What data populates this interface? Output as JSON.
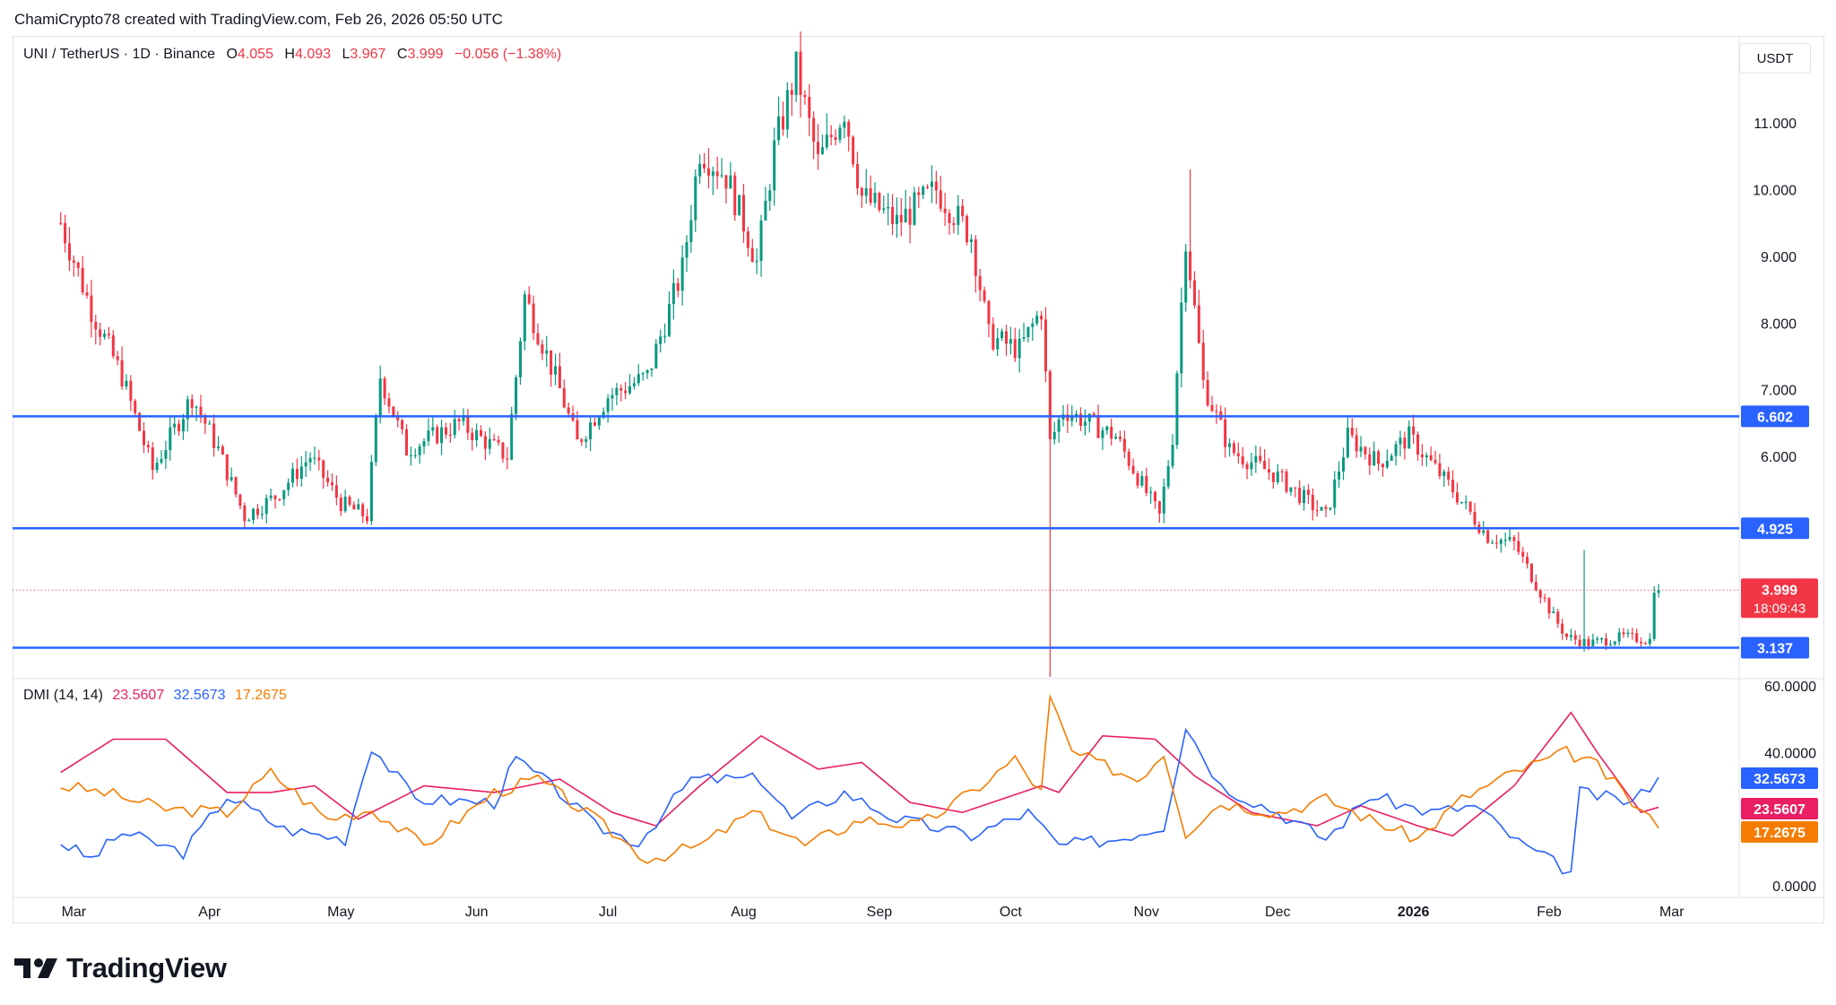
{
  "header": {
    "credit": "ChamiCrypto78 created with TradingView.com, Feb 26, 2026 05:50 UTC"
  },
  "legend": {
    "symbol": "UNI / TetherUS · 1D · Binance",
    "open_label": "O",
    "open": "4.055",
    "high_label": "H",
    "high": "4.093",
    "low_label": "L",
    "low": "3.967",
    "close_label": "C",
    "close": "3.999",
    "change": "−0.056 (−1.38%)"
  },
  "currency_button": "USDT",
  "dmi_legend": {
    "title": "DMI (14, 14)",
    "adx": "23.5607",
    "plus_di": "32.5673",
    "minus_di": "17.2675"
  },
  "brand": "TradingView",
  "colors": {
    "up": "#089981",
    "down": "#f23645",
    "level_line": "#2962ff",
    "adx": "#e91e63",
    "plus_di": "#2962ff",
    "minus_di": "#f57c00"
  },
  "chart_data": [
    {
      "type": "candlestick",
      "title": "",
      "xlabel": "",
      "ylabel": "",
      "x_ticks": [
        "Mar",
        "Apr",
        "May",
        "Jun",
        "Jul",
        "Aug",
        "Sep",
        "Oct",
        "Nov",
        "Dec",
        "2026",
        "Feb",
        "Mar"
      ],
      "y_ticks": [
        "11.000",
        "10.000",
        "9.000",
        "8.000",
        "7.000",
        "6.000"
      ],
      "ylim": [
        2.7,
        12.3
      ],
      "grid": false,
      "horizontal_levels": [
        6.602,
        4.925,
        3.137
      ],
      "level_labels": [
        "6.602",
        "4.925",
        "3.137"
      ],
      "last_price": 3.999,
      "last_price_label": "3.999",
      "countdown": "18:09:43",
      "price_path": [
        [
          "2025-02-26",
          9.5
        ],
        [
          "2025-03-05",
          8.2
        ],
        [
          "2025-03-12",
          7.2
        ],
        [
          "2025-03-19",
          5.8
        ],
        [
          "2025-03-28",
          6.9
        ],
        [
          "2025-04-03",
          6.1
        ],
        [
          "2025-04-09",
          5.1
        ],
        [
          "2025-04-16",
          5.4
        ],
        [
          "2025-04-24",
          6.0
        ],
        [
          "2025-05-01",
          5.3
        ],
        [
          "2025-05-07",
          5.1
        ],
        [
          "2025-05-10",
          7.2
        ],
        [
          "2025-05-16",
          6.1
        ],
        [
          "2025-05-28",
          6.5
        ],
        [
          "2025-06-08",
          6.0
        ],
        [
          "2025-06-12",
          8.4
        ],
        [
          "2025-06-20",
          7.0
        ],
        [
          "2025-06-24",
          6.2
        ],
        [
          "2025-07-01",
          6.9
        ],
        [
          "2025-07-10",
          7.2
        ],
        [
          "2025-07-18",
          8.8
        ],
        [
          "2025-07-22",
          10.6
        ],
        [
          "2025-07-28",
          10.2
        ],
        [
          "2025-08-01",
          9.5
        ],
        [
          "2025-08-04",
          8.9
        ],
        [
          "2025-08-08",
          10.6
        ],
        [
          "2025-08-13",
          11.8
        ],
        [
          "2025-08-18",
          10.4
        ],
        [
          "2025-08-24",
          11.2
        ],
        [
          "2025-08-28",
          9.9
        ],
        [
          "2025-09-05",
          9.5
        ],
        [
          "2025-09-14",
          10.0
        ],
        [
          "2025-09-22",
          9.3
        ],
        [
          "2025-09-26",
          7.8
        ],
        [
          "2025-10-03",
          7.6
        ],
        [
          "2025-10-08",
          8.2
        ],
        [
          "2025-10-10",
          6.2
        ],
        [
          "2025-10-13",
          6.7
        ],
        [
          "2025-10-25",
          6.3
        ],
        [
          "2025-11-04",
          5.1
        ],
        [
          "2025-11-07",
          6.3
        ],
        [
          "2025-11-10",
          9.3
        ],
        [
          "2025-11-14",
          7.1
        ],
        [
          "2025-11-20",
          6.1
        ],
        [
          "2025-12-01",
          5.7
        ],
        [
          "2025-12-12",
          5.1
        ],
        [
          "2025-12-17",
          6.3
        ],
        [
          "2025-12-24",
          5.9
        ],
        [
          "2025-12-31",
          6.3
        ],
        [
          "2026-01-10",
          5.5
        ],
        [
          "2026-01-18",
          4.8
        ],
        [
          "2026-01-24",
          4.7
        ],
        [
          "2026-02-02",
          3.6
        ],
        [
          "2026-02-05",
          3.3
        ],
        [
          "2026-02-10",
          3.2
        ],
        [
          "2026-02-18",
          3.3
        ],
        [
          "2026-02-24",
          3.25
        ],
        [
          "2026-02-25",
          4.055
        ],
        [
          "2026-02-26",
          3.999
        ]
      ]
    },
    {
      "type": "line",
      "title": "",
      "y_ticks": [
        "60.0000",
        "40.0000",
        "0.0000"
      ],
      "ylim": [
        0,
        60
      ],
      "series": [
        {
          "name": "ADX",
          "color": "#e91e63",
          "points": [
            [
              "2025-02-26",
              34
            ],
            [
              "2025-03-10",
              44
            ],
            [
              "2025-03-22",
              44
            ],
            [
              "2025-04-05",
              28
            ],
            [
              "2025-04-15",
              28
            ],
            [
              "2025-04-25",
              30
            ],
            [
              "2025-05-05",
              20
            ],
            [
              "2025-05-20",
              30
            ],
            [
              "2025-06-05",
              28
            ],
            [
              "2025-06-20",
              32
            ],
            [
              "2025-07-02",
              22
            ],
            [
              "2025-07-12",
              18
            ],
            [
              "2025-07-22",
              30
            ],
            [
              "2025-08-05",
              45
            ],
            [
              "2025-08-18",
              35
            ],
            [
              "2025-08-28",
              37
            ],
            [
              "2025-09-08",
              25
            ],
            [
              "2025-09-20",
              22
            ],
            [
              "2025-10-08",
              30
            ],
            [
              "2025-10-12",
              28
            ],
            [
              "2025-10-22",
              45
            ],
            [
              "2025-11-03",
              44
            ],
            [
              "2025-11-12",
              33
            ],
            [
              "2025-11-25",
              22
            ],
            [
              "2025-12-10",
              18
            ],
            [
              "2025-12-20",
              24
            ],
            [
              "2026-01-02",
              18
            ],
            [
              "2026-01-10",
              15
            ],
            [
              "2026-01-24",
              30
            ],
            [
              "2026-02-06",
              52
            ],
            [
              "2026-02-12",
              40
            ],
            [
              "2026-02-22",
              22
            ],
            [
              "2026-02-26",
              23.5607
            ]
          ]
        },
        {
          "name": "+DI",
          "color": "#2962ff",
          "points": [
            [
              "2025-02-26",
              13
            ],
            [
              "2025-03-05",
              8
            ],
            [
              "2025-03-12",
              16
            ],
            [
              "2025-03-26",
              10
            ],
            [
              "2025-04-05",
              27
            ],
            [
              "2025-04-18",
              17
            ],
            [
              "2025-05-02",
              14
            ],
            [
              "2025-05-08",
              42
            ],
            [
              "2025-05-18",
              26
            ],
            [
              "2025-06-05",
              25
            ],
            [
              "2025-06-10",
              38
            ],
            [
              "2025-06-20",
              28
            ],
            [
              "2025-06-28",
              18
            ],
            [
              "2025-07-08",
              13
            ],
            [
              "2025-07-20",
              32
            ],
            [
              "2025-08-05",
              32
            ],
            [
              "2025-08-12",
              20
            ],
            [
              "2025-08-24",
              28
            ],
            [
              "2025-09-05",
              20
            ],
            [
              "2025-09-22",
              15
            ],
            [
              "2025-10-05",
              22
            ],
            [
              "2025-10-12",
              12
            ],
            [
              "2025-10-25",
              14
            ],
            [
              "2025-11-05",
              18
            ],
            [
              "2025-11-10",
              48
            ],
            [
              "2025-11-18",
              30
            ],
            [
              "2025-12-01",
              22
            ],
            [
              "2025-12-12",
              14
            ],
            [
              "2025-12-22",
              27
            ],
            [
              "2026-01-05",
              22
            ],
            [
              "2026-01-15",
              24
            ],
            [
              "2026-01-25",
              13
            ],
            [
              "2026-02-06",
              4
            ],
            [
              "2026-02-08",
              28
            ],
            [
              "2026-02-20",
              25
            ],
            [
              "2026-02-26",
              32.5673
            ]
          ]
        },
        {
          "name": "−DI",
          "color": "#f57c00",
          "points": [
            [
              "2025-02-26",
              30
            ],
            [
              "2025-03-08",
              28
            ],
            [
              "2025-03-22",
              23
            ],
            [
              "2025-04-05",
              22
            ],
            [
              "2025-04-15",
              34
            ],
            [
              "2025-04-28",
              20
            ],
            [
              "2025-05-08",
              23
            ],
            [
              "2025-05-20",
              12
            ],
            [
              "2025-06-05",
              28
            ],
            [
              "2025-06-15",
              32
            ],
            [
              "2025-06-28",
              20
            ],
            [
              "2025-07-10",
              8
            ],
            [
              "2025-07-22",
              12
            ],
            [
              "2025-08-03",
              22
            ],
            [
              "2025-08-15",
              12
            ],
            [
              "2025-08-28",
              20
            ],
            [
              "2025-09-10",
              18
            ],
            [
              "2025-09-22",
              28
            ],
            [
              "2025-10-02",
              38
            ],
            [
              "2025-10-08",
              28
            ],
            [
              "2025-10-10",
              56
            ],
            [
              "2025-10-15",
              40
            ],
            [
              "2025-10-30",
              32
            ],
            [
              "2025-11-05",
              40
            ],
            [
              "2025-11-10",
              16
            ],
            [
              "2025-11-18",
              25
            ],
            [
              "2025-12-01",
              22
            ],
            [
              "2025-12-12",
              26
            ],
            [
              "2025-12-22",
              20
            ],
            [
              "2026-01-02",
              14
            ],
            [
              "2026-01-12",
              26
            ],
            [
              "2026-01-24",
              34
            ],
            [
              "2026-02-05",
              40
            ],
            [
              "2026-02-12",
              36
            ],
            [
              "2026-02-20",
              25
            ],
            [
              "2026-02-26",
              17.2675
            ]
          ]
        }
      ]
    }
  ]
}
